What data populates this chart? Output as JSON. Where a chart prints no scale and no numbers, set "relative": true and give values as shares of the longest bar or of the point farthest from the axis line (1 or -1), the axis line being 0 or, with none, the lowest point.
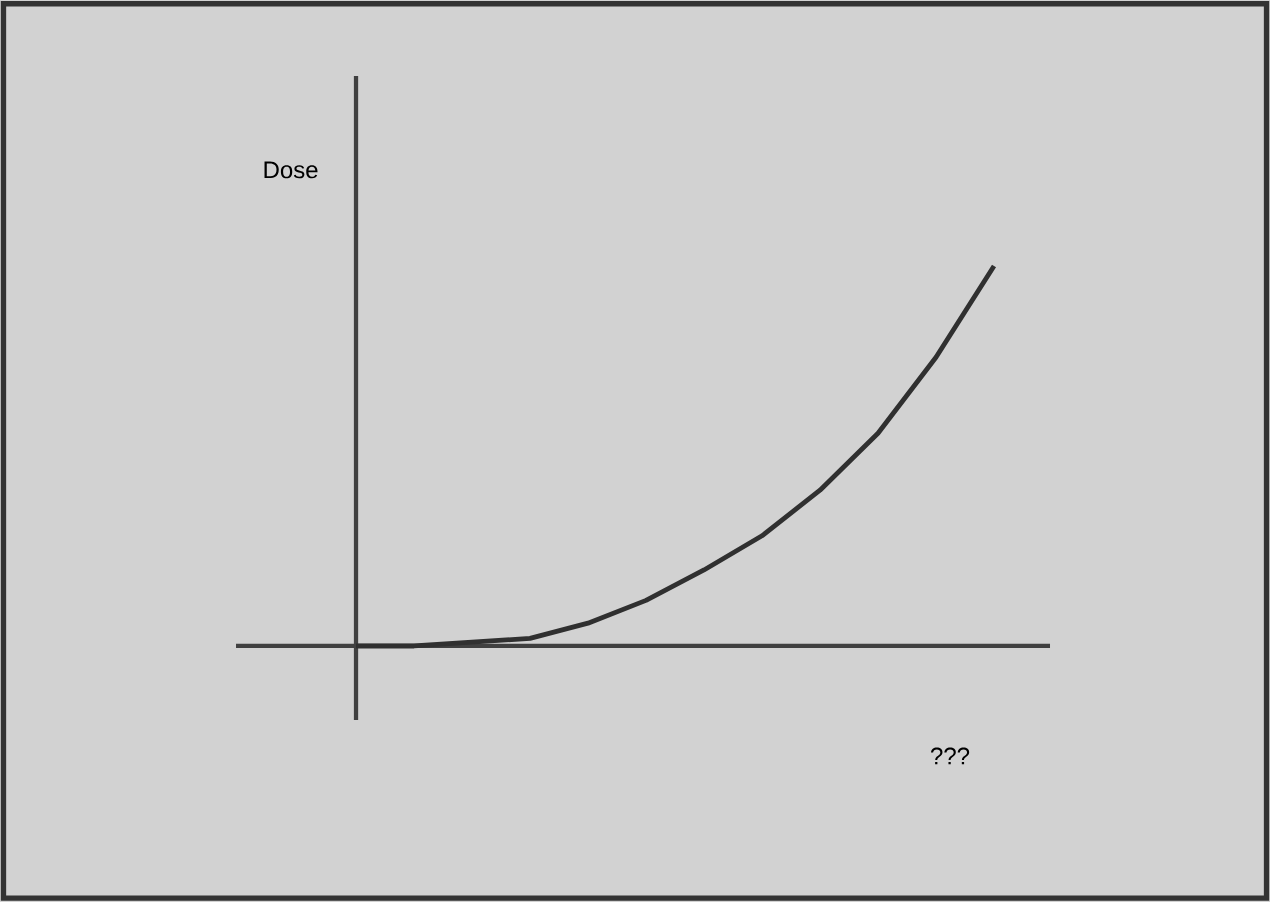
{
  "chart_data": {
    "type": "line",
    "relative": true,
    "xlabel": "???",
    "ylabel": "Dose",
    "categories": [
      null,
      null,
      null,
      null,
      null,
      null,
      null,
      null,
      null,
      null,
      null,
      null
    ],
    "values": [
      0,
      0,
      0.01,
      0.02,
      0.06,
      0.12,
      0.2,
      0.29,
      0.41,
      0.56,
      0.76,
      1
    ],
    "color": "#303030",
    "marker": "none",
    "line_style": "solid"
  }
}
